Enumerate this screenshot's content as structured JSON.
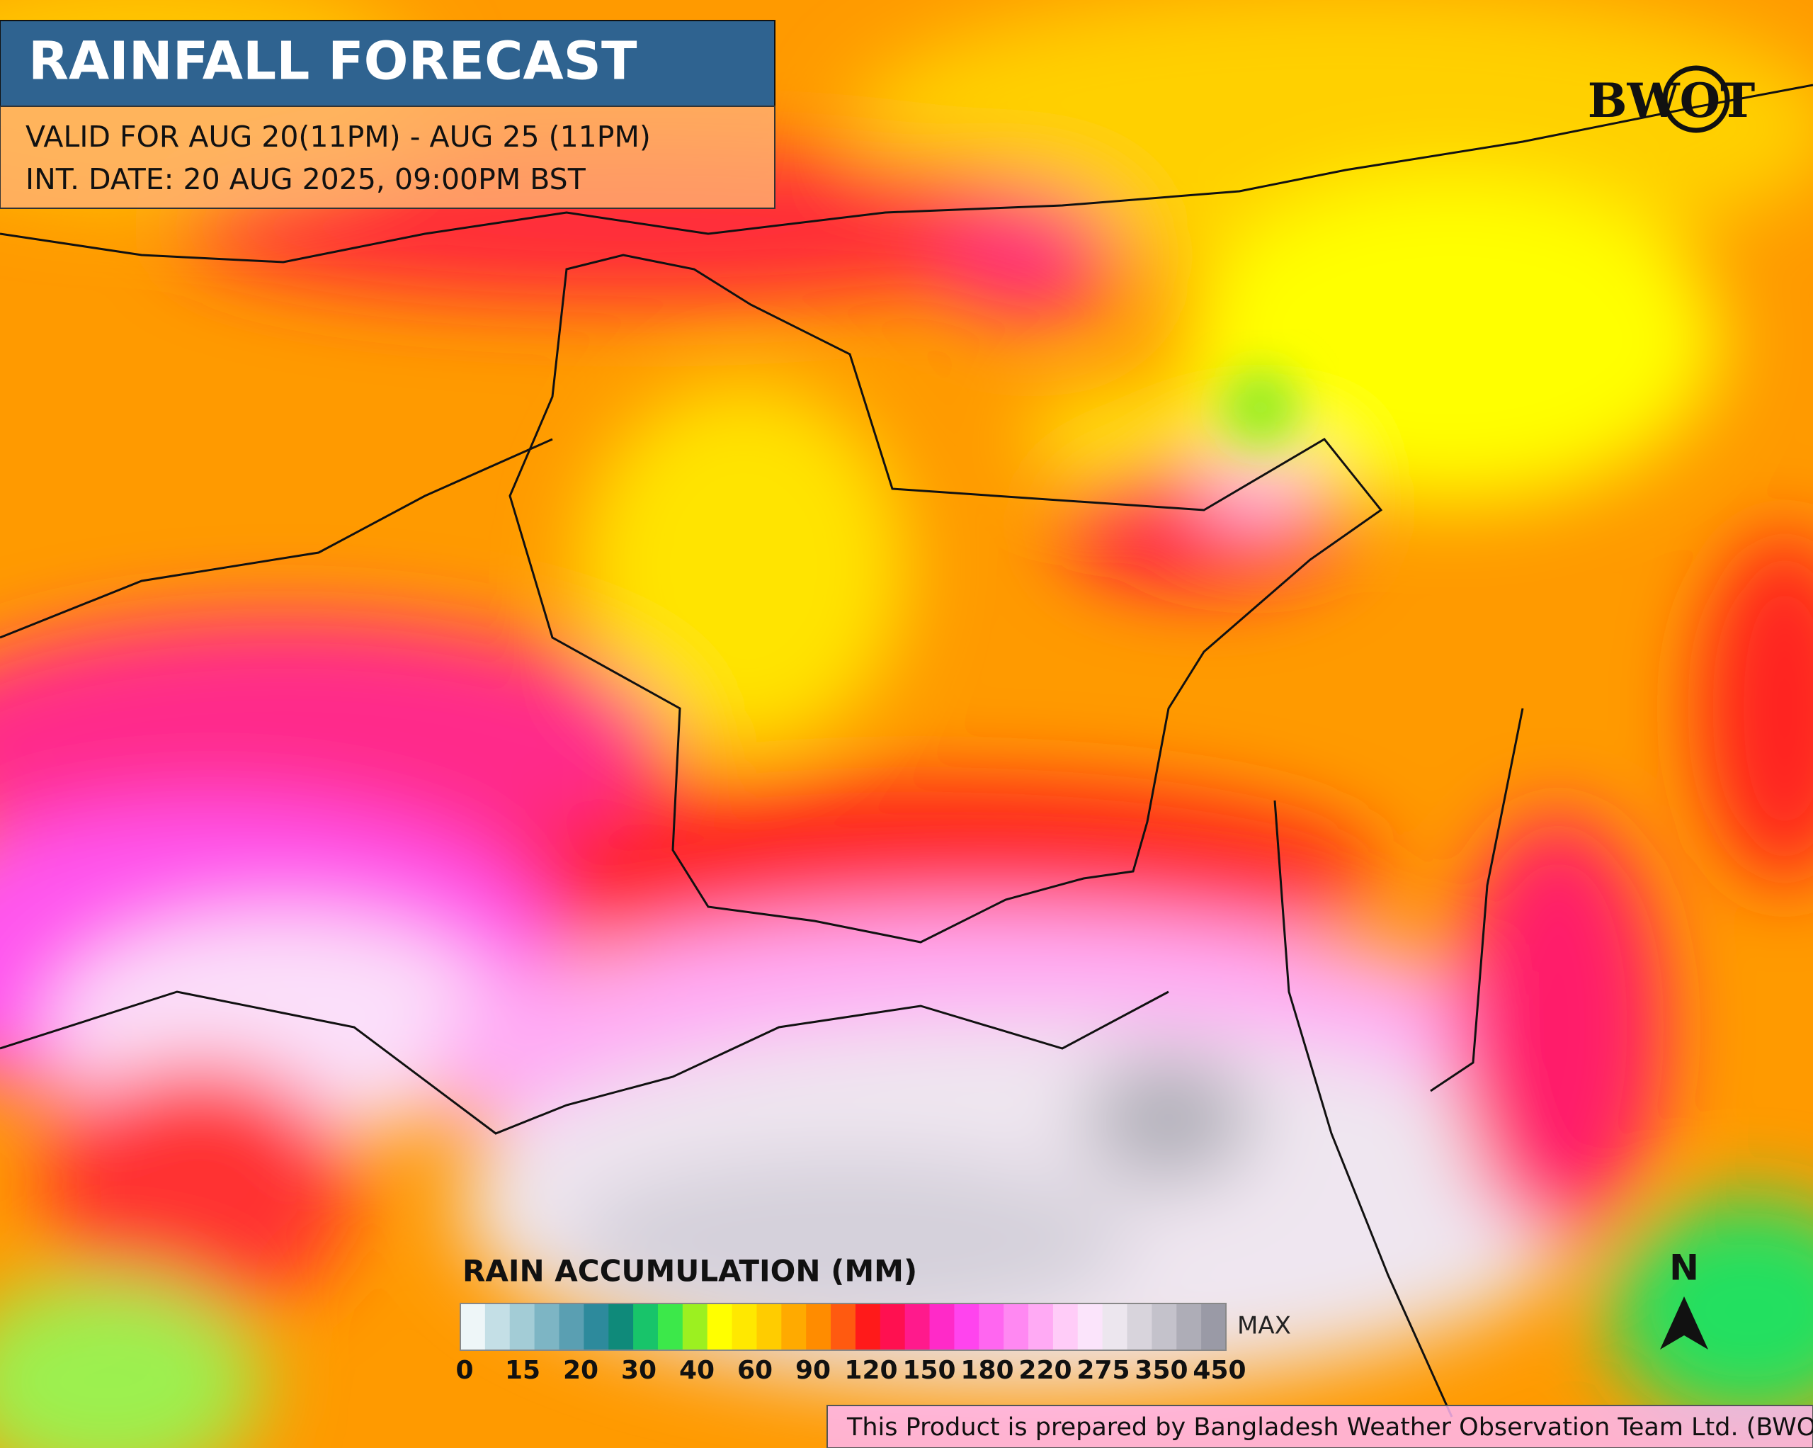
{
  "header": {
    "title": "RAINFALL FORECAST",
    "valid": "VALID FOR AUG 20(11PM) - AUG 25 (11PM)",
    "init_date": "INT. DATE: 20 AUG 2025, 09:00PM BST"
  },
  "logo": "BWOT",
  "legend": {
    "title": "RAIN ACCUMULATION (MM)",
    "labels": [
      0,
      15,
      20,
      30,
      40,
      60,
      90,
      120,
      150,
      180,
      220,
      275,
      350,
      450
    ],
    "max_label": "MAX",
    "colors": [
      "#eef6f8",
      "#c4dfe6",
      "#a3ccd6",
      "#7db5c4",
      "#5a9fb2",
      "#2d8a9c",
      "#0f8a7a",
      "#18c46a",
      "#3ce84a",
      "#9cf020",
      "#ffff00",
      "#ffe800",
      "#ffcc00",
      "#ffaa00",
      "#ff8c00",
      "#ff5a10",
      "#ff1a1a",
      "#ff1050",
      "#ff1a8c",
      "#ff2ac8",
      "#ff44ee",
      "#ff66f0",
      "#ff88f2",
      "#ffaaf4",
      "#ffccf8",
      "#fbe4fb",
      "#ece6ee",
      "#d8d4dc",
      "#c4c2cb",
      "#aeadb7",
      "#9a9aa6"
    ]
  },
  "north": "N",
  "footer": "This Product is prepared by Bangladesh Weather Observation Team Ltd. (BWOT)"
}
